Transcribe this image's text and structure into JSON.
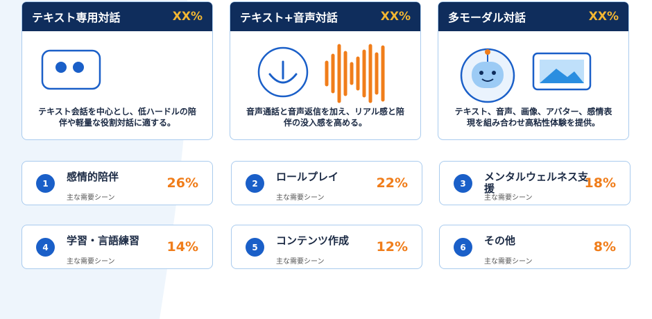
{
  "modes": [
    {
      "title": "テキスト専用対話",
      "rate": "XX%",
      "description": "テキスト会話を中心とし、低ハードルの陪伴や軽量な役割対話に適する。"
    },
    {
      "title": "テキスト+音声対話",
      "rate": "XX%",
      "description": "音声通話と音声返信を加え、リアル感と陪伴の没入感を高める。"
    },
    {
      "title": "多モーダル対話",
      "rate": "XX%",
      "description": "テキスト、音声、画像、アバター、感情表現を組み合わせ高粘性体験を提供。"
    }
  ],
  "scenes": [
    {
      "number": "1",
      "title": "感情的陪伴",
      "subtitle": "主な需要シーン",
      "share": "26%"
    },
    {
      "number": "2",
      "title": "ロールプレイ",
      "subtitle": "主な需要シーン",
      "share": "22%"
    },
    {
      "number": "3",
      "title": "メンタルウェルネス支援",
      "subtitle": "主な需要シーン",
      "share": "18%"
    },
    {
      "number": "4",
      "title": "学習・言語練習",
      "subtitle": "主な需要シーン",
      "share": "14%"
    },
    {
      "number": "5",
      "title": "コンテンツ作成",
      "subtitle": "主な需要シーン",
      "share": "12%"
    },
    {
      "number": "6",
      "title": "その他",
      "subtitle": "主な需要シーン",
      "share": "8%"
    }
  ]
}
